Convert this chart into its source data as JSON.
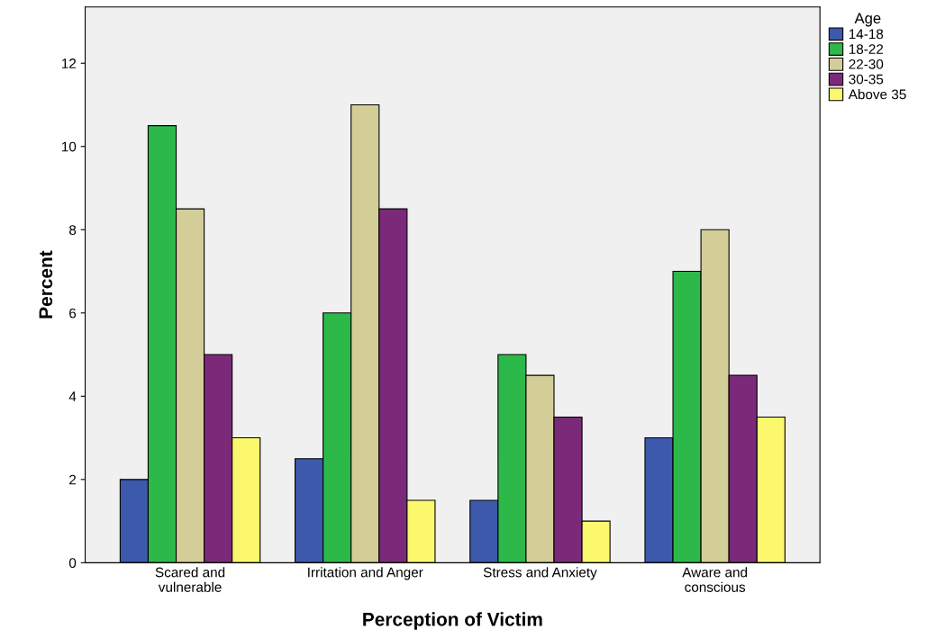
{
  "chart_data": {
    "type": "bar",
    "xlabel": "Perception of Victim",
    "ylabel": "Percent",
    "legend_title": "Age",
    "legend": "top right",
    "grid": false,
    "categories": [
      "Scared and\nvulnerable",
      "Irritation and Anger",
      "Stress and Anxiety",
      "Aware and\nconscious"
    ],
    "ylim": [
      0,
      13.35
    ],
    "yticks": [
      0,
      2,
      4,
      6,
      8,
      10,
      12
    ],
    "series": [
      {
        "name": "14-18",
        "color": "#3d59ab",
        "values": [
          2,
          2.5,
          1.5,
          3
        ]
      },
      {
        "name": "18-22",
        "color": "#2db84a",
        "values": [
          10.5,
          6,
          5,
          7
        ]
      },
      {
        "name": "22-30",
        "color": "#d3ce97",
        "values": [
          8.5,
          11,
          4.5,
          8
        ]
      },
      {
        "name": "30-35",
        "color": "#7b2a7a",
        "values": [
          5,
          8.5,
          3.5,
          4.5
        ]
      },
      {
        "name": "Above 35",
        "color": "#fbf86e",
        "values": [
          3,
          1.5,
          1,
          3.5
        ]
      }
    ]
  }
}
